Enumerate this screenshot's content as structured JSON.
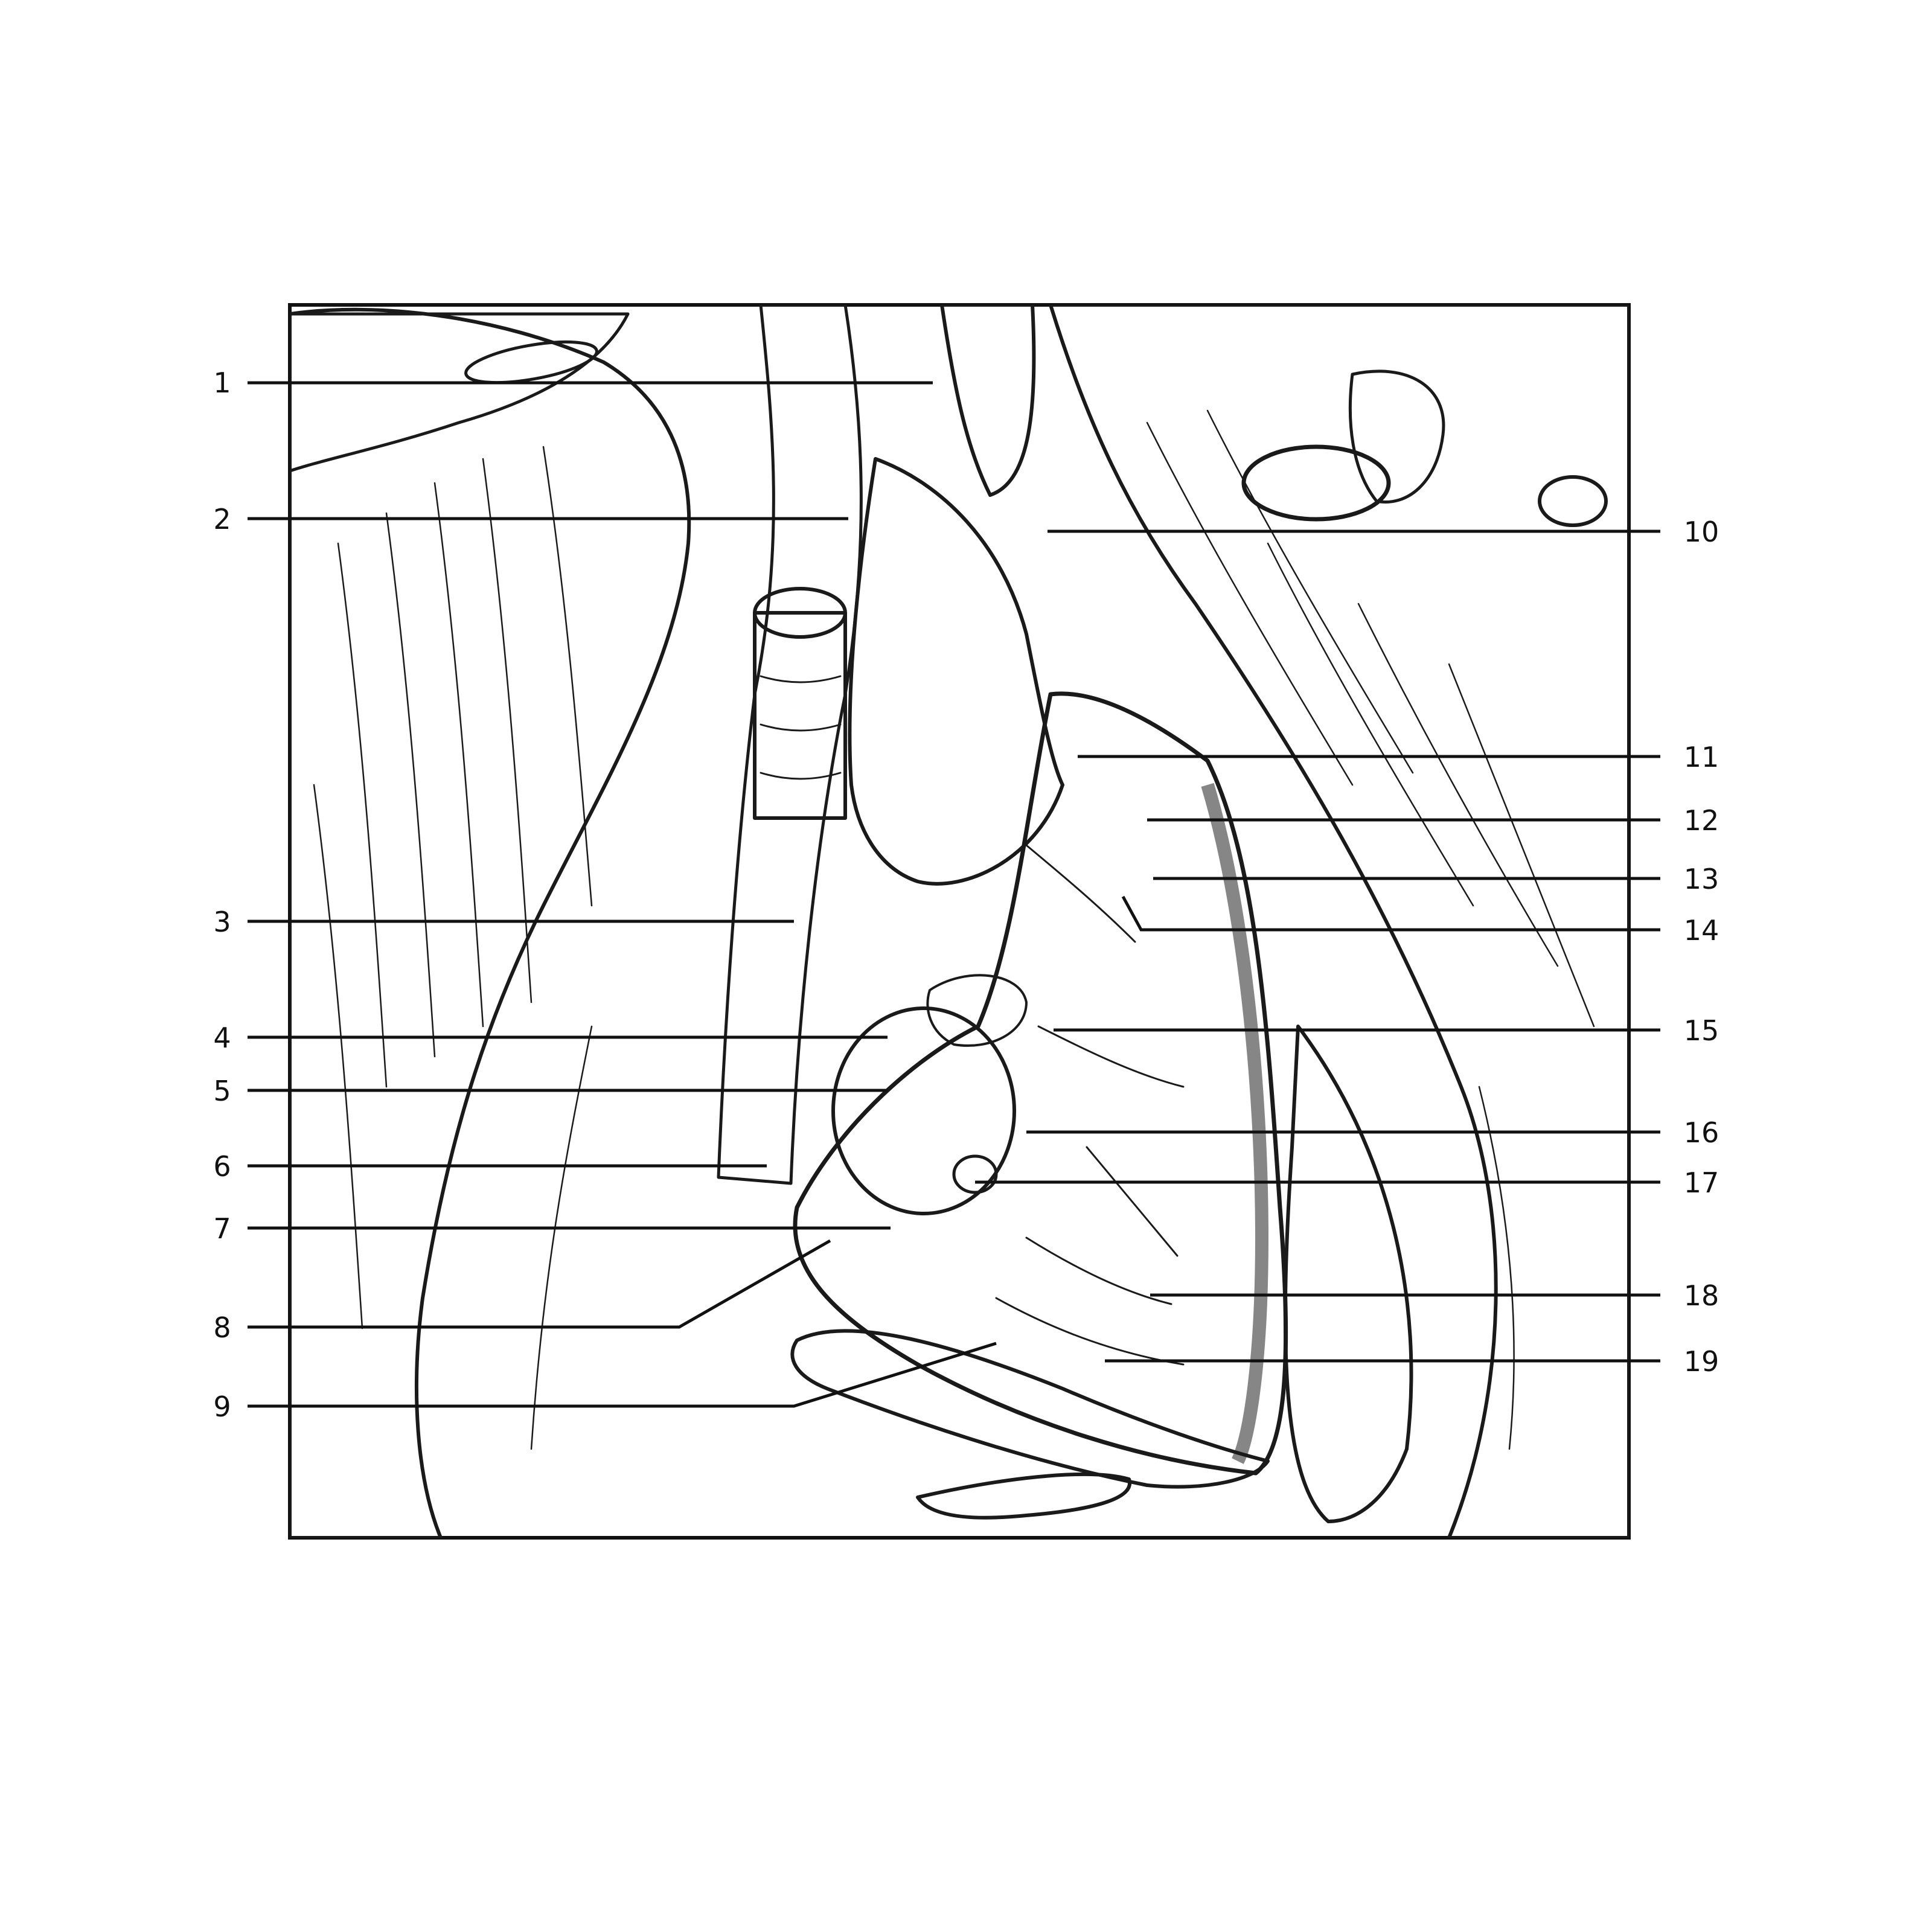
{
  "figure": {
    "labels_left": [
      "1",
      "2",
      "3",
      "4",
      "5",
      "6",
      "7",
      "8",
      "9"
    ],
    "labels_right": [
      "10",
      "11",
      "12",
      "13",
      "14",
      "15",
      "16",
      "17",
      "18",
      "19"
    ]
  }
}
